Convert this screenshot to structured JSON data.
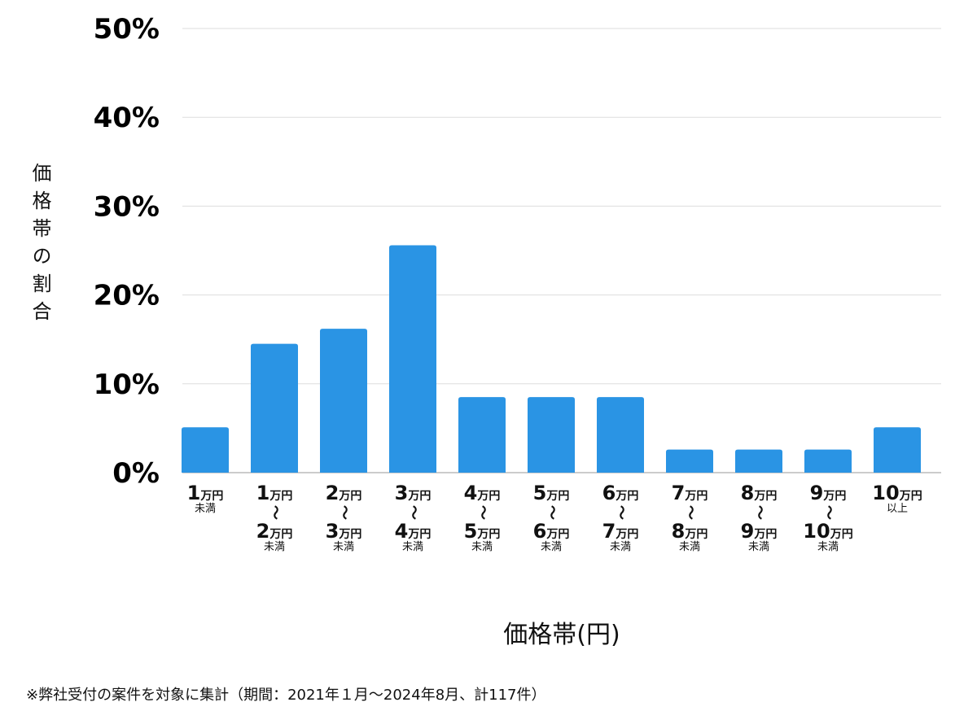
{
  "chart_data": {
    "type": "bar",
    "title": "",
    "xlabel": "価格帯(円)",
    "ylabel": "価格帯の割合",
    "ylim": [
      0,
      50
    ],
    "yticks": [
      "0%",
      "10%",
      "20%",
      "30%",
      "40%",
      "50%"
    ],
    "grid": true,
    "bar_color": "#2a94e4",
    "categories": [
      [
        "1万円",
        "未満"
      ],
      [
        "1万円",
        "〜",
        "2万円",
        "未満"
      ],
      [
        "2万円",
        "〜",
        "3万円",
        "未満"
      ],
      [
        "3万円",
        "〜",
        "4万円",
        "未満"
      ],
      [
        "4万円",
        "〜",
        "5万円",
        "未満"
      ],
      [
        "5万円",
        "〜",
        "6万円",
        "未満"
      ],
      [
        "6万円",
        "〜",
        "7万円",
        "未満"
      ],
      [
        "7万円",
        "〜",
        "8万円",
        "未満"
      ],
      [
        "8万円",
        "〜",
        "9万円",
        "未満"
      ],
      [
        "9万円",
        "〜",
        "10万円",
        "未満"
      ],
      [
        "10万円",
        "以上"
      ]
    ],
    "values": [
      5.1,
      14.5,
      16.2,
      25.6,
      8.5,
      8.5,
      8.5,
      2.6,
      2.6,
      2.6,
      5.1
    ]
  },
  "footnote": "※弊社受付の案件を対象に集計（期間：2021年１月〜2024年8月、計117件）"
}
